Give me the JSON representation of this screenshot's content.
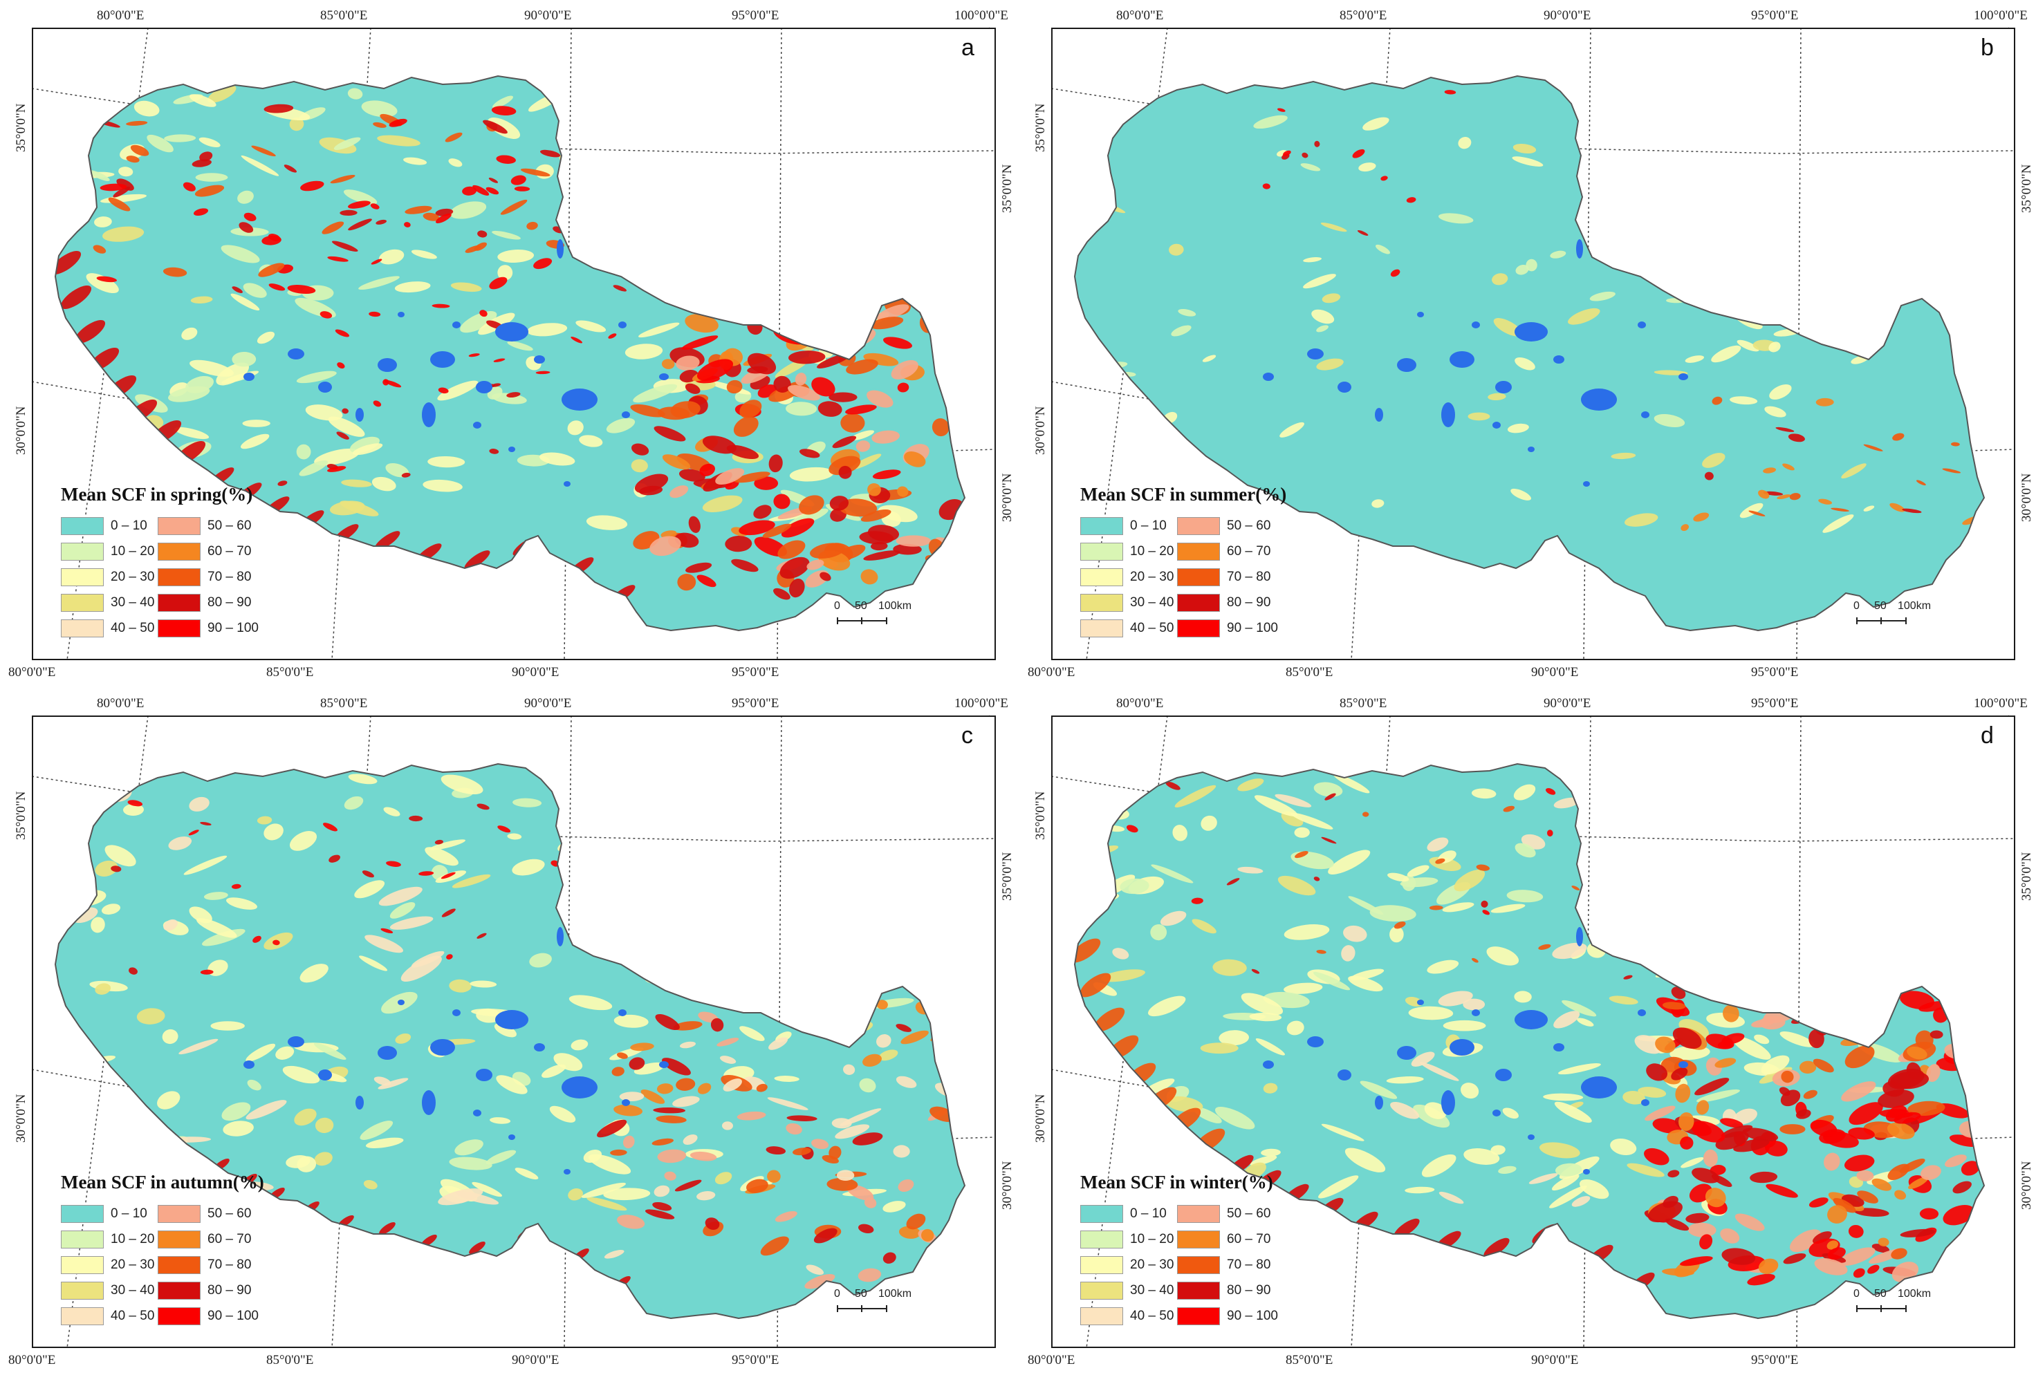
{
  "graticule": {
    "top_labels": [
      "80°0'0\"E",
      "85°0'0\"E",
      "90°0'0\"E",
      "95°0'0\"E",
      "100°0'0\"E"
    ],
    "bottom_labels": [
      "80°0'0\"E",
      "85°0'0\"E",
      "90°0'0\"E",
      "95°0'0\"E"
    ],
    "left_labels": [
      "35°0'0\"N",
      "30°0'0\"N"
    ],
    "right_labels": [
      "35°0'0\"N",
      "30°0'0\"N"
    ]
  },
  "legend": {
    "classes": [
      {
        "label": "0 – 10",
        "color": "#72d7cf"
      },
      {
        "label": "10 – 20",
        "color": "#d9f5b4"
      },
      {
        "label": "20 – 30",
        "color": "#fdfcb2"
      },
      {
        "label": "30 – 40",
        "color": "#ece37e"
      },
      {
        "label": "40 – 50",
        "color": "#fce4bf"
      },
      {
        "label": "50 – 60",
        "color": "#f8a88a"
      },
      {
        "label": "60 – 70",
        "color": "#f58620"
      },
      {
        "label": "70 – 80",
        "color": "#f0590f"
      },
      {
        "label": "80 – 90",
        "color": "#d40d0d"
      },
      {
        "label": "90 – 100",
        "color": "#fb0000"
      }
    ],
    "lake_color": "#2a6ee8"
  },
  "scalebar": {
    "label_0": "0",
    "label_50": "50",
    "label_100": "100km"
  },
  "panels": [
    {
      "letter": "a",
      "legend_title": "Mean SCF in spring(%)",
      "season": "spring"
    },
    {
      "letter": "b",
      "legend_title": "Mean SCF in summer(%)",
      "season": "summer"
    },
    {
      "letter": "c",
      "legend_title": "Mean SCF in autumn(%)",
      "season": "autumn"
    },
    {
      "letter": "d",
      "legend_title": "Mean SCF in winter(%)",
      "season": "winter"
    }
  ]
}
